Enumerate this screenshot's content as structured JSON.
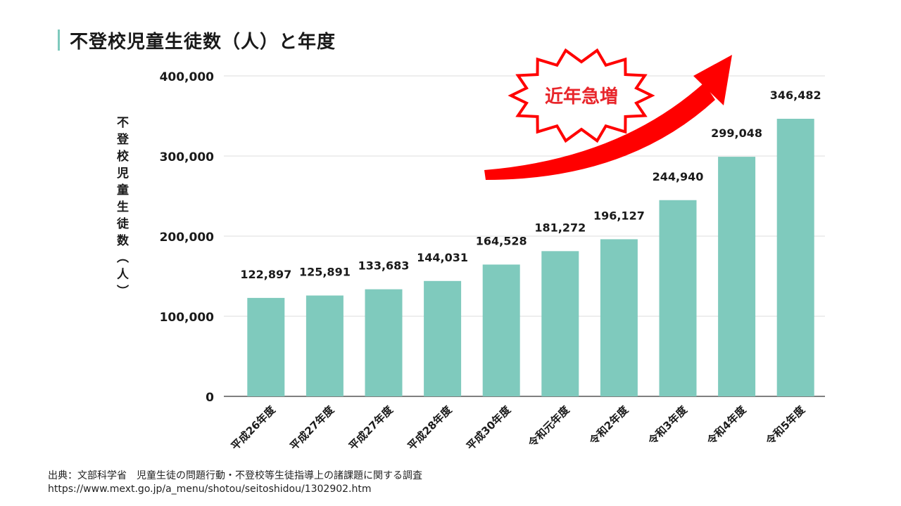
{
  "chart_data": {
    "type": "bar",
    "title": "不登校児童生徒数（人）と年度",
    "xlabel": "",
    "ylabel": "不登校児童生徒数（人）",
    "categories": [
      "平成26年度",
      "平成27年度",
      "平成27年度",
      "平成28年度",
      "平成30年度",
      "令和元年度",
      "令和2年度",
      "令和3年度",
      "令和4年度",
      "令和5年度"
    ],
    "values": [
      122897,
      125891,
      133683,
      144031,
      164528,
      181272,
      196127,
      244940,
      299048,
      346482
    ],
    "value_labels": [
      "122,897",
      "125,891",
      "133,683",
      "144,031",
      "164,528",
      "181,272",
      "196,127",
      "244,940",
      "299,048",
      "346,482"
    ],
    "ylim": [
      0,
      400000
    ],
    "yticks": [
      0,
      100000,
      200000,
      300000,
      400000
    ],
    "ytick_labels": [
      "0",
      "100,000",
      "200,000",
      "300,000",
      "400,000"
    ],
    "grid": true,
    "bar_color": "#7fcabd",
    "annotation": {
      "text": "近年急増",
      "text_color": "#e8262b",
      "arrow_color": "#ff0000"
    }
  },
  "source": {
    "line": "出典：文部科学省　児童生徒の問題行動・不登校等生徒指導上の諸課題に関する調査",
    "url": "https://www.mext.go.jp/a_menu/shotou/seitoshidou/1302902.htm"
  }
}
